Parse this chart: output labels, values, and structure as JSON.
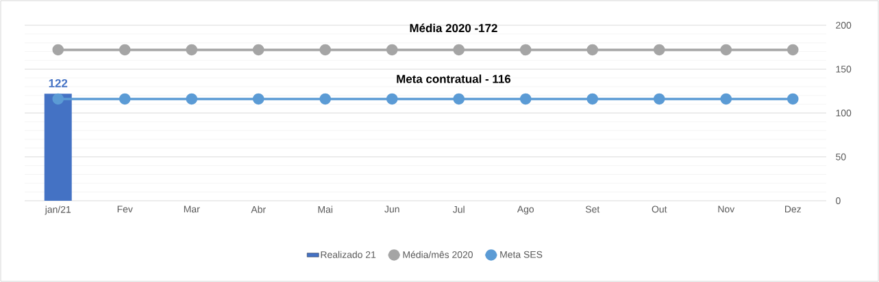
{
  "chart_data": {
    "type": "bar",
    "categories": [
      "jan/21",
      "Fev",
      "Mar",
      "Abr",
      "Mai",
      "Jun",
      "Jul",
      "Ago",
      "Set",
      "Out",
      "Nov",
      "Dez"
    ],
    "series": [
      {
        "name": "Realizado 21",
        "color": "#4472c4",
        "values": [
          122,
          null,
          null,
          null,
          null,
          null,
          null,
          null,
          null,
          null,
          null,
          null
        ],
        "value_labels": [
          "122",
          null,
          null,
          null,
          null,
          null,
          null,
          null,
          null,
          null,
          null,
          null
        ]
      },
      {
        "name": "Média/mês 2020",
        "type": "line",
        "color": "#a5a5a5",
        "values": [
          172,
          172,
          172,
          172,
          172,
          172,
          172,
          172,
          172,
          172,
          172,
          172
        ]
      },
      {
        "name": "Meta SES",
        "type": "line",
        "color": "#5b9bd5",
        "values": [
          116,
          116,
          116,
          116,
          116,
          116,
          116,
          116,
          116,
          116,
          116,
          116
        ]
      }
    ],
    "annotations": [
      "Média 2020 -172",
      "Meta contratual - 116"
    ],
    "ylim": [
      0,
      200
    ],
    "yticks": [
      0,
      50,
      100,
      150,
      200
    ],
    "grid": "y",
    "legend": "bottom",
    "marker": "circle"
  }
}
